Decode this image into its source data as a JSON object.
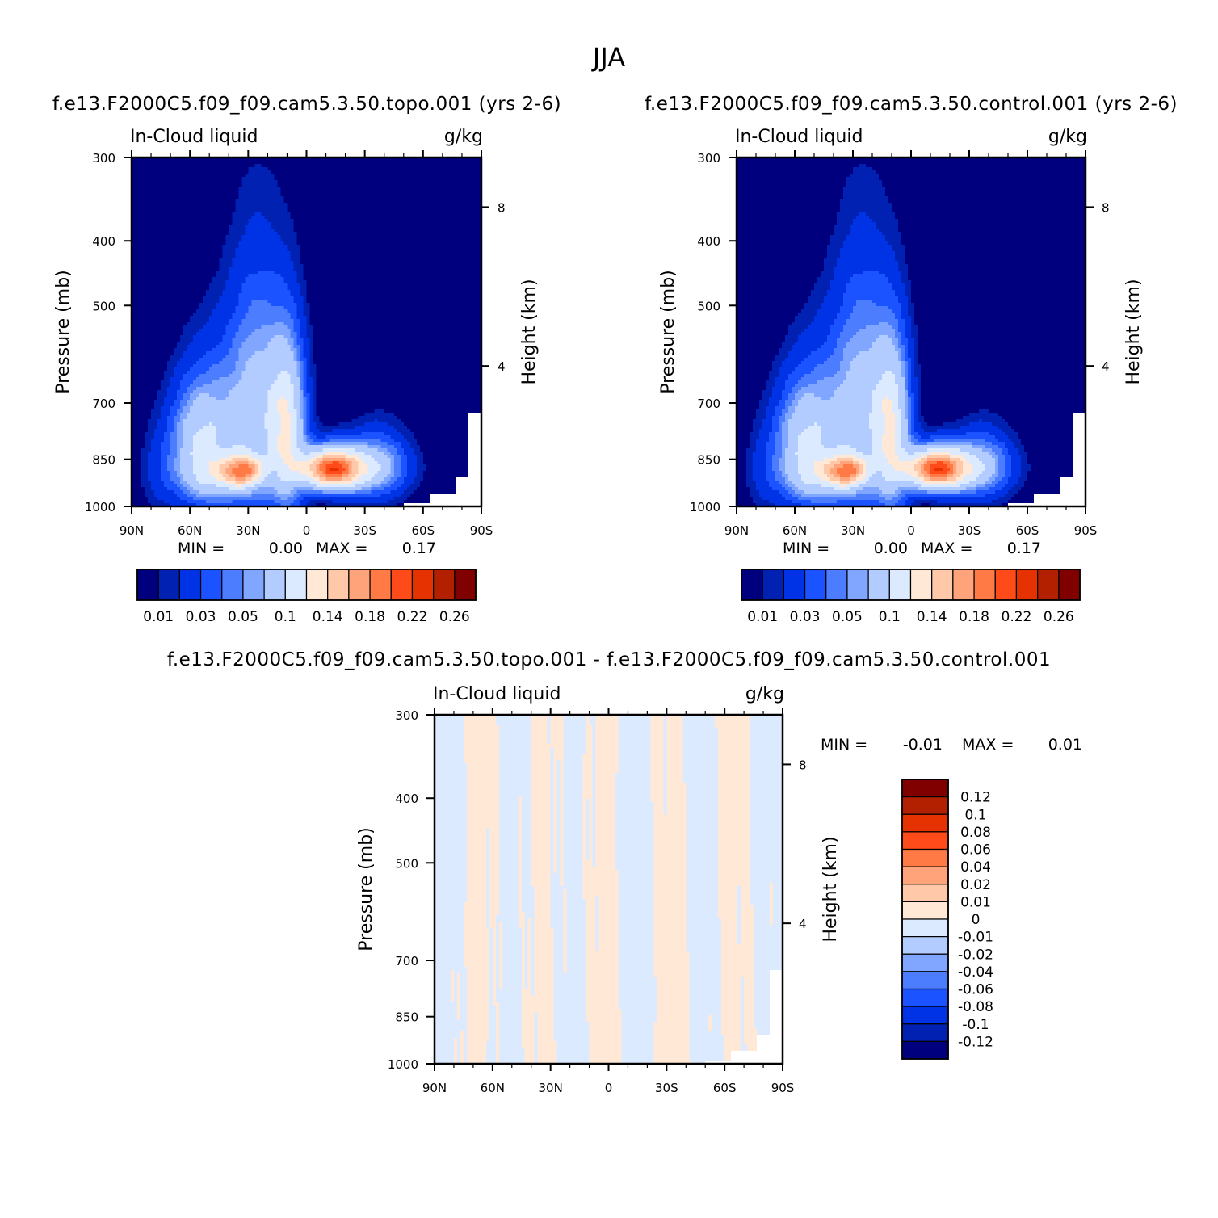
{
  "figure": {
    "super_title": "JJA"
  },
  "colors": {
    "ctrl_palette": [
      "#00007f",
      "#0021b2",
      "#0033e5",
      "#1a53ff",
      "#4d7dff",
      "#80a6ff",
      "#b3ccff",
      "#dceaff",
      "#ffe8d5",
      "#ffc8a8",
      "#ffa37a",
      "#ff7a45",
      "#ff4a1a",
      "#e63200",
      "#b32000",
      "#800000"
    ],
    "diff_palette": [
      "#00007f",
      "#0021b2",
      "#0033e5",
      "#1a53ff",
      "#4d7dff",
      "#80a6ff",
      "#b3ccff",
      "#dceaff",
      "#ffe8d5",
      "#ffc8a8",
      "#ffa37a",
      "#ff7a45",
      "#ff4a1a",
      "#e63200",
      "#b32000",
      "#800000"
    ],
    "land_mask": "#ffffff",
    "frame": "#000000"
  },
  "chart_data": [
    {
      "id": "topo",
      "type": "heatmap",
      "title": "f.e13.F2000C5.f09_f09.cam5.3.50.topo.001  (yrs 2-6)",
      "left_label": "In-Cloud liquid",
      "right_label": "g/kg",
      "ylabel": "Pressure (mb)",
      "ylabel_right": "Height (km)",
      "xticks": [
        "90N",
        "60N",
        "30N",
        "0",
        "30S",
        "60S",
        "90S"
      ],
      "xlim": [
        90,
        -90
      ],
      "yticks": [
        "300",
        "400",
        "500",
        "700",
        "850",
        "1000"
      ],
      "ytick_values": [
        300,
        400,
        500,
        700,
        850,
        1000
      ],
      "ylim": [
        1000,
        300
      ],
      "height_ticks": [
        "8",
        "4"
      ],
      "height_tick_pressures": [
        356,
        616
      ],
      "min_label": "MIN =",
      "min_value": "0.00",
      "max_label": "MAX =",
      "max_value": "0.17",
      "colorbar_levels": [
        "0.01",
        "0.03",
        "0.05",
        "0.1",
        "0.14",
        "0.18",
        "0.22",
        "0.26"
      ],
      "colorbar_orientation": "horizontal",
      "field": {
        "description_units": "g/kg",
        "peak_value": 0.17,
        "peak_lat": -12,
        "peak_pressure": 870
      }
    },
    {
      "id": "control",
      "type": "heatmap",
      "title": "f.e13.F2000C5.f09_f09.cam5.3.50.control.001  (yrs 2-6)",
      "left_label": "In-Cloud liquid",
      "right_label": "g/kg",
      "ylabel": "Pressure (mb)",
      "ylabel_right": "Height (km)",
      "xticks": [
        "90N",
        "60N",
        "30N",
        "0",
        "30S",
        "60S",
        "90S"
      ],
      "xlim": [
        90,
        -90
      ],
      "yticks": [
        "300",
        "400",
        "500",
        "700",
        "850",
        "1000"
      ],
      "ytick_values": [
        300,
        400,
        500,
        700,
        850,
        1000
      ],
      "ylim": [
        1000,
        300
      ],
      "height_ticks": [
        "8",
        "4"
      ],
      "height_tick_pressures": [
        356,
        616
      ],
      "min_label": "MIN =",
      "min_value": "0.00",
      "max_label": "MAX =",
      "max_value": "0.17",
      "colorbar_levels": [
        "0.01",
        "0.03",
        "0.05",
        "0.1",
        "0.14",
        "0.18",
        "0.22",
        "0.26"
      ],
      "colorbar_orientation": "horizontal",
      "field": {
        "description_units": "g/kg",
        "peak_value": 0.17,
        "peak_lat": -12,
        "peak_pressure": 870
      }
    },
    {
      "id": "diff",
      "type": "heatmap",
      "title": "f.e13.F2000C5.f09_f09.cam5.3.50.topo.001 - f.e13.F2000C5.f09_f09.cam5.3.50.control.001",
      "left_label": "In-Cloud liquid",
      "right_label": "g/kg",
      "ylabel": "Pressure (mb)",
      "ylabel_right": "Height (km)",
      "xticks": [
        "90N",
        "60N",
        "30N",
        "0",
        "30S",
        "60S",
        "90S"
      ],
      "xlim": [
        90,
        -90
      ],
      "yticks": [
        "300",
        "400",
        "500",
        "700",
        "850",
        "1000"
      ],
      "ytick_values": [
        300,
        400,
        500,
        700,
        850,
        1000
      ],
      "ylim": [
        1000,
        300
      ],
      "height_ticks": [
        "8",
        "4"
      ],
      "height_tick_pressures": [
        356,
        616
      ],
      "min_label": "MIN =",
      "min_value": "-0.01",
      "max_label": "MAX =",
      "max_value": "0.01",
      "colorbar_levels": [
        "0.12",
        "0.1",
        "0.08",
        "0.06",
        "0.04",
        "0.02",
        "0.01",
        "0",
        "-0.01",
        "-0.02",
        "-0.04",
        "-0.06",
        "-0.08",
        "-0.1",
        "-0.12"
      ],
      "colorbar_orientation": "vertical",
      "field": {
        "description_units": "g/kg",
        "min_value": -0.01,
        "max_value": 0.01
      }
    }
  ]
}
